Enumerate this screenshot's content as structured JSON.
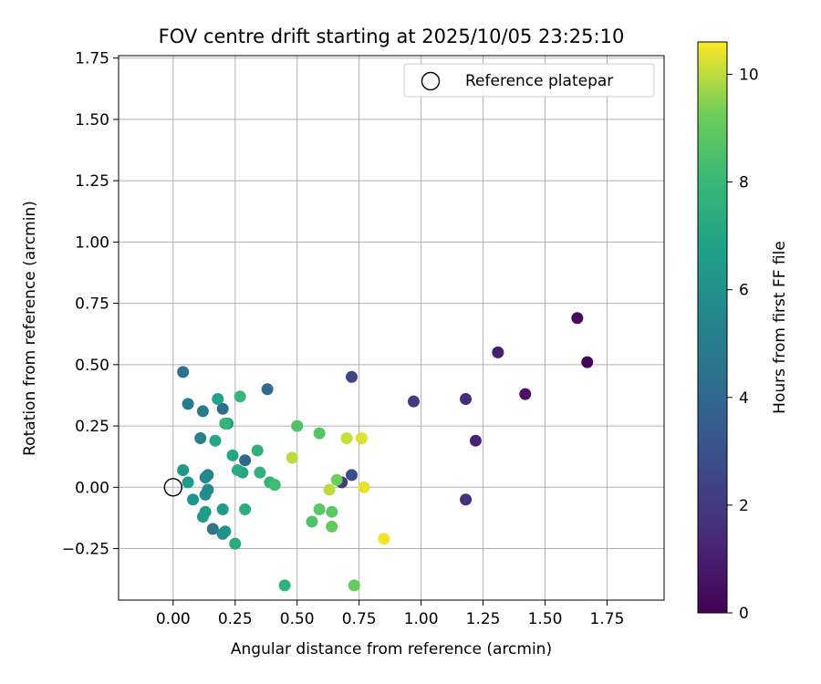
{
  "chart_data": {
    "type": "scatter",
    "title": "FOV centre drift starting at 2025/10/05 23:25:10",
    "xlabel": "Angular distance from reference (arcmin)",
    "ylabel": "Rotation from reference (arcmin)",
    "xlim": [
      -0.22,
      1.98
    ],
    "ylim": [
      -0.46,
      1.76
    ],
    "xticks": [
      0.0,
      0.25,
      0.5,
      0.75,
      1.0,
      1.25,
      1.5,
      1.75
    ],
    "xtick_labels": [
      "0.00",
      "0.25",
      "0.50",
      "0.75",
      "1.00",
      "1.25",
      "1.50",
      "1.75"
    ],
    "yticks": [
      -0.25,
      0.0,
      0.25,
      0.5,
      0.75,
      1.0,
      1.25,
      1.5,
      1.75
    ],
    "ytick_labels": [
      "−0.25",
      "0.00",
      "0.25",
      "0.50",
      "0.75",
      "1.00",
      "1.25",
      "1.50",
      "1.75"
    ],
    "grid": true,
    "legend": {
      "position": "top-right",
      "entries": [
        "Reference platepar"
      ]
    },
    "reference_point": {
      "x": 0.0,
      "y": 0.0,
      "label": "Reference platepar"
    },
    "colorbar": {
      "label": "Hours from first FF file",
      "colormap": "viridis",
      "range": [
        0,
        10.6
      ],
      "ticks": [
        0,
        2,
        4,
        6,
        8,
        10
      ],
      "tick_labels": [
        "0",
        "2",
        "4",
        "6",
        "8",
        "10"
      ]
    },
    "points": [
      {
        "x": 1.67,
        "y": 0.51,
        "hours": 0.1
      },
      {
        "x": 1.63,
        "y": 0.69,
        "hours": 0.3
      },
      {
        "x": 1.42,
        "y": 0.38,
        "hours": 0.6
      },
      {
        "x": 1.31,
        "y": 0.55,
        "hours": 1.0
      },
      {
        "x": 1.22,
        "y": 0.19,
        "hours": 1.2
      },
      {
        "x": 1.18,
        "y": 0.36,
        "hours": 1.5
      },
      {
        "x": 1.18,
        "y": -0.05,
        "hours": 1.6
      },
      {
        "x": 0.97,
        "y": 0.35,
        "hours": 2.2
      },
      {
        "x": 0.72,
        "y": 0.45,
        "hours": 2.5
      },
      {
        "x": 0.72,
        "y": 0.05,
        "hours": 2.8
      },
      {
        "x": 0.68,
        "y": 0.02,
        "hours": 2.0
      },
      {
        "x": 0.38,
        "y": 0.4,
        "hours": 4.2
      },
      {
        "x": 0.29,
        "y": 0.11,
        "hours": 4.0
      },
      {
        "x": 0.2,
        "y": 0.32,
        "hours": 4.3
      },
      {
        "x": 0.16,
        "y": -0.17,
        "hours": 4.6
      },
      {
        "x": 0.12,
        "y": 0.31,
        "hours": 5.0
      },
      {
        "x": 0.04,
        "y": 0.47,
        "hours": 4.5
      },
      {
        "x": 0.06,
        "y": 0.34,
        "hours": 5.0
      },
      {
        "x": 0.11,
        "y": 0.2,
        "hours": 5.2
      },
      {
        "x": 0.14,
        "y": 0.05,
        "hours": 5.3
      },
      {
        "x": 0.13,
        "y": 0.04,
        "hours": 5.6
      },
      {
        "x": 0.14,
        "y": -0.01,
        "hours": 5.6
      },
      {
        "x": 0.13,
        "y": -0.03,
        "hours": 5.8
      },
      {
        "x": 0.2,
        "y": -0.19,
        "hours": 5.8
      },
      {
        "x": 0.21,
        "y": -0.18,
        "hours": 6.1
      },
      {
        "x": 0.08,
        "y": -0.05,
        "hours": 6.2
      },
      {
        "x": 0.22,
        "y": 0.26,
        "hours": 6.3
      },
      {
        "x": 0.04,
        "y": 0.07,
        "hours": 6.3
      },
      {
        "x": 0.06,
        "y": 0.02,
        "hours": 6.5
      },
      {
        "x": 0.13,
        "y": -0.1,
        "hours": 6.5
      },
      {
        "x": 0.12,
        "y": -0.12,
        "hours": 6.6
      },
      {
        "x": 0.2,
        "y": -0.09,
        "hours": 6.6
      },
      {
        "x": 0.18,
        "y": 0.36,
        "hours": 6.8
      },
      {
        "x": 0.17,
        "y": 0.19,
        "hours": 7.0
      },
      {
        "x": 0.24,
        "y": 0.13,
        "hours": 7.0
      },
      {
        "x": 0.25,
        "y": -0.23,
        "hours": 7.2
      },
      {
        "x": 0.28,
        "y": 0.06,
        "hours": 7.1
      },
      {
        "x": 0.26,
        "y": 0.07,
        "hours": 7.3
      },
      {
        "x": 0.29,
        "y": -0.09,
        "hours": 7.4
      },
      {
        "x": 0.35,
        "y": 0.06,
        "hours": 7.6
      },
      {
        "x": 0.34,
        "y": 0.15,
        "hours": 7.5
      },
      {
        "x": 0.39,
        "y": 0.02,
        "hours": 7.8
      },
      {
        "x": 0.21,
        "y": 0.26,
        "hours": 7.9
      },
      {
        "x": 0.27,
        "y": 0.37,
        "hours": 8.0
      },
      {
        "x": 0.45,
        "y": -0.4,
        "hours": 7.7
      },
      {
        "x": 0.41,
        "y": 0.01,
        "hours": 8.2
      },
      {
        "x": 0.5,
        "y": 0.25,
        "hours": 8.6
      },
      {
        "x": 0.56,
        "y": -0.14,
        "hours": 8.6
      },
      {
        "x": 0.59,
        "y": 0.22,
        "hours": 8.7
      },
      {
        "x": 0.59,
        "y": -0.09,
        "hours": 8.8
      },
      {
        "x": 0.64,
        "y": -0.1,
        "hours": 8.8
      },
      {
        "x": 0.64,
        "y": -0.16,
        "hours": 9.0
      },
      {
        "x": 0.66,
        "y": 0.03,
        "hours": 9.2
      },
      {
        "x": 0.73,
        "y": -0.4,
        "hours": 9.1
      },
      {
        "x": 0.48,
        "y": 0.12,
        "hours": 10.0
      },
      {
        "x": 0.63,
        "y": -0.01,
        "hours": 10.0
      },
      {
        "x": 0.7,
        "y": 0.2,
        "hours": 10.1
      },
      {
        "x": 0.76,
        "y": 0.2,
        "hours": 10.3
      },
      {
        "x": 0.77,
        "y": 0.0,
        "hours": 10.4
      },
      {
        "x": 0.85,
        "y": -0.21,
        "hours": 10.5
      }
    ]
  }
}
